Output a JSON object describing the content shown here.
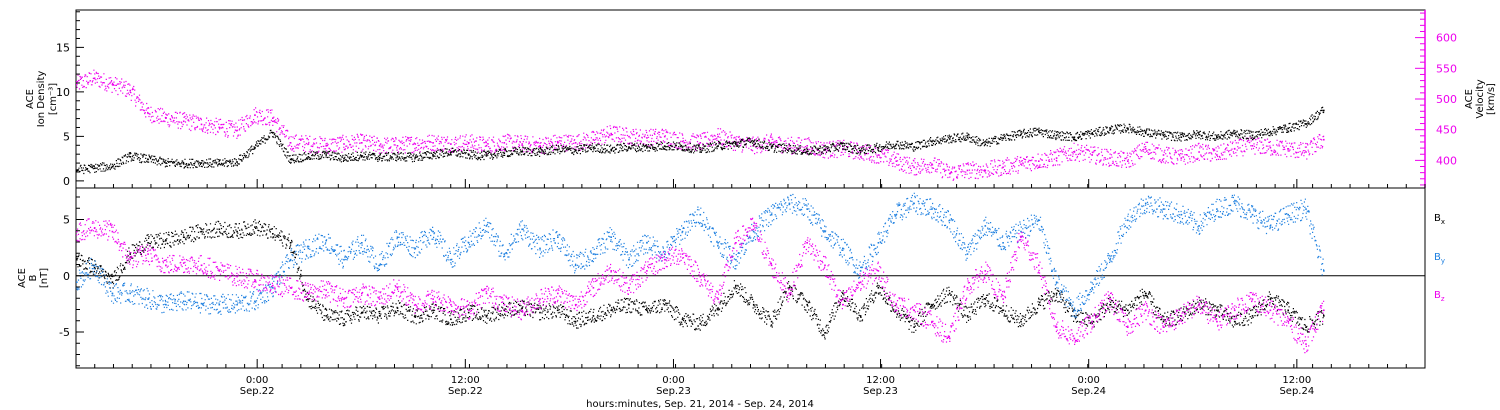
{
  "chart_data": [
    {
      "type": "scatter",
      "panel": "top",
      "ylabel_left": [
        "ACE",
        "Ion Density",
        "[cm⁻³]"
      ],
      "ylabel_right": [
        "ACE",
        "Velocity",
        "[km/s]"
      ],
      "yticks_left": [
        0,
        5,
        10,
        15
      ],
      "ylim_left": [
        -0.8,
        19.2
      ],
      "yticks_right": [
        400,
        450,
        500,
        550,
        600
      ],
      "ylim_right": [
        355,
        645
      ],
      "grid": false,
      "series": [
        {
          "name": "Ion Density",
          "axis": "left",
          "color": "#000000",
          "x": [
            0,
            1,
            2,
            3,
            4,
            5,
            6,
            7,
            8,
            9,
            10,
            11,
            12,
            13,
            14,
            15,
            16,
            17,
            18,
            19,
            20,
            21,
            22,
            23,
            24,
            25,
            26,
            27,
            28,
            29,
            30,
            31,
            32,
            33,
            34,
            35,
            36,
            37,
            38,
            39,
            40,
            41,
            42,
            43,
            44,
            45,
            46,
            47,
            48,
            49,
            50,
            51,
            52,
            53,
            54,
            55,
            56,
            57,
            58,
            59,
            60,
            61,
            62,
            63,
            64,
            65,
            66,
            67,
            68,
            69,
            70
          ],
          "values": [
            1.3,
            1.5,
            1.7,
            2.8,
            2.5,
            2.1,
            2.0,
            2.1,
            2.0,
            2.2,
            3.8,
            5.5,
            2.5,
            2.8,
            3.0,
            2.6,
            2.9,
            2.7,
            2.8,
            2.7,
            3.0,
            3.3,
            3.0,
            2.9,
            3.2,
            3.4,
            3.3,
            3.6,
            3.5,
            3.8,
            3.6,
            3.9,
            3.8,
            4.0,
            3.9,
            3.6,
            4.0,
            4.2,
            4.5,
            3.8,
            3.7,
            3.4,
            3.6,
            4.0,
            3.5,
            3.8,
            4.2,
            3.9,
            4.5,
            4.8,
            5.0,
            4.2,
            4.9,
            5.3,
            5.6,
            5.2,
            5.0,
            5.4,
            5.8,
            6.0,
            5.5,
            5.2,
            5.0,
            5.3,
            5.0,
            5.4,
            5.2,
            5.6,
            6.0,
            6.5,
            8.0
          ]
        },
        {
          "name": "Velocity",
          "axis": "right",
          "color": "#ee00ee",
          "x": [
            0,
            1,
            2,
            3,
            4,
            5,
            6,
            7,
            8,
            9,
            10,
            11,
            12,
            13,
            14,
            15,
            16,
            17,
            18,
            19,
            20,
            21,
            22,
            23,
            24,
            25,
            26,
            27,
            28,
            29,
            30,
            31,
            32,
            33,
            34,
            35,
            36,
            37,
            38,
            39,
            40,
            41,
            42,
            43,
            44,
            45,
            46,
            47,
            48,
            49,
            50,
            51,
            52,
            53,
            54,
            55,
            56,
            57,
            58,
            59,
            60,
            61,
            62,
            63,
            64,
            65,
            66,
            67,
            68,
            69,
            70
          ],
          "values": [
            525,
            535,
            525,
            515,
            478,
            470,
            465,
            460,
            455,
            450,
            475,
            470,
            430,
            428,
            425,
            428,
            430,
            425,
            425,
            428,
            430,
            428,
            430,
            425,
            430,
            428,
            425,
            430,
            430,
            435,
            445,
            440,
            438,
            440,
            432,
            430,
            440,
            430,
            425,
            430,
            425,
            425,
            418,
            420,
            415,
            410,
            400,
            390,
            395,
            380,
            385,
            385,
            390,
            395,
            400,
            405,
            415,
            410,
            405,
            400,
            420,
            410,
            405,
            415,
            410,
            420,
            425,
            422,
            420,
            415,
            435
          ]
        }
      ]
    },
    {
      "type": "scatter",
      "panel": "bottom",
      "ylabel_left": [
        "ACE",
        "B",
        "[nT]"
      ],
      "yticks_left": [
        -5,
        0,
        5
      ],
      "ylim_left": [
        -8.2,
        7.8
      ],
      "zero_line": true,
      "grid": false,
      "legend": [
        "Bx",
        "By",
        "Bz"
      ],
      "legend_position": "right",
      "series": [
        {
          "name": "Bx",
          "color": "#000000",
          "x": [
            0,
            1,
            2,
            3,
            4,
            5,
            6,
            7,
            8,
            9,
            10,
            11,
            12,
            13,
            14,
            15,
            16,
            17,
            18,
            19,
            20,
            21,
            22,
            23,
            24,
            25,
            26,
            27,
            28,
            29,
            30,
            31,
            32,
            33,
            34,
            35,
            36,
            37,
            38,
            39,
            40,
            41,
            42,
            43,
            44,
            45,
            46,
            47,
            48,
            49,
            50,
            51,
            52,
            53,
            54,
            55,
            56,
            57,
            58,
            59,
            60,
            61,
            62,
            63,
            64,
            65,
            66,
            67,
            68,
            69,
            70
          ],
          "values": [
            1.5,
            0.8,
            -0.5,
            2.0,
            3.0,
            3.2,
            3.5,
            4.0,
            4.2,
            4.0,
            4.4,
            3.8,
            3.0,
            -2.0,
            -3.5,
            -3.8,
            -3.2,
            -3.5,
            -2.8,
            -3.6,
            -3.0,
            -3.8,
            -3.2,
            -3.5,
            -3.0,
            -2.8,
            -3.2,
            -3.0,
            -4.0,
            -3.5,
            -3.0,
            -2.5,
            -3.0,
            -2.5,
            -3.8,
            -4.2,
            -2.8,
            -0.8,
            -2.5,
            -4.0,
            -1.0,
            -2.5,
            -5.0,
            -1.5,
            -3.5,
            -1.0,
            -3.0,
            -4.5,
            -2.5,
            -1.5,
            -3.5,
            -2.0,
            -3.0,
            -4.0,
            -2.5,
            -1.5,
            -3.5,
            -4.0,
            -2.5,
            -3.0,
            -1.5,
            -4.0,
            -3.5,
            -2.5,
            -3.0,
            -4.0,
            -3.5,
            -2.0,
            -3.0,
            -4.5,
            -3.5
          ]
        },
        {
          "name": "By",
          "color": "#1f80e0",
          "x": [
            0,
            1,
            2,
            3,
            4,
            5,
            6,
            7,
            8,
            9,
            10,
            11,
            12,
            13,
            14,
            15,
            16,
            17,
            18,
            19,
            20,
            21,
            22,
            23,
            24,
            25,
            26,
            27,
            28,
            29,
            30,
            31,
            32,
            33,
            34,
            35,
            36,
            37,
            38,
            39,
            40,
            41,
            42,
            43,
            44,
            45,
            46,
            47,
            48,
            49,
            50,
            51,
            52,
            53,
            54,
            55,
            56,
            57,
            58,
            59,
            60,
            61,
            62,
            63,
            64,
            65,
            66,
            67,
            68,
            69,
            70
          ],
          "values": [
            -0.5,
            1.0,
            -1.5,
            -1.5,
            -2.0,
            -2.5,
            -2.2,
            -2.4,
            -2.5,
            -2.5,
            -2.2,
            -1.0,
            1.5,
            2.5,
            3.2,
            1.5,
            3.0,
            1.0,
            3.5,
            2.5,
            4.0,
            1.5,
            3.0,
            4.5,
            2.0,
            4.2,
            2.5,
            3.5,
            1.0,
            2.0,
            3.5,
            1.5,
            3.0,
            2.0,
            4.0,
            5.5,
            3.0,
            1.5,
            4.0,
            5.5,
            6.5,
            6.0,
            4.0,
            2.5,
            0.5,
            3.0,
            5.5,
            6.5,
            6.0,
            5.0,
            2.0,
            4.5,
            3.0,
            4.0,
            5.0,
            -0.5,
            -3.0,
            -1.0,
            1.5,
            5.0,
            6.5,
            6.0,
            5.5,
            4.5,
            6.0,
            6.5,
            5.5,
            4.5,
            5.5,
            6.0,
            0.5
          ]
        },
        {
          "name": "Bz",
          "color": "#ee00ee",
          "x": [
            0,
            1,
            2,
            3,
            4,
            5,
            6,
            7,
            8,
            9,
            10,
            11,
            12,
            13,
            14,
            15,
            16,
            17,
            18,
            19,
            20,
            21,
            22,
            23,
            24,
            25,
            26,
            27,
            28,
            29,
            30,
            31,
            32,
            33,
            34,
            35,
            36,
            37,
            38,
            39,
            40,
            41,
            42,
            43,
            44,
            45,
            46,
            47,
            48,
            49,
            50,
            51,
            52,
            53,
            54,
            55,
            56,
            57,
            58,
            59,
            60,
            61,
            62,
            63,
            64,
            65,
            66,
            67,
            68,
            69,
            70
          ],
          "values": [
            4.0,
            4.3,
            4.0,
            1.5,
            2.0,
            1.0,
            1.2,
            1.0,
            0.5,
            0.0,
            -0.3,
            -0.8,
            -1.0,
            -1.5,
            -1.2,
            -2.0,
            -1.5,
            -2.0,
            -1.0,
            -2.5,
            -2.0,
            -2.5,
            -3.0,
            -1.5,
            -2.5,
            -3.0,
            -2.0,
            -1.5,
            -2.5,
            -1.0,
            0.5,
            -1.0,
            0.5,
            1.5,
            2.0,
            0.0,
            -2.0,
            3.0,
            4.5,
            1.0,
            -1.5,
            3.0,
            1.0,
            -2.5,
            -0.5,
            0.5,
            -2.5,
            -3.0,
            -4.0,
            -5.5,
            -1.0,
            0.5,
            -2.0,
            3.5,
            1.0,
            -4.5,
            -5.5,
            -4.0,
            -2.0,
            -4.5,
            -3.0,
            -4.5,
            -3.5,
            -2.5,
            -4.0,
            -3.0,
            -2.0,
            -3.0,
            -4.0,
            -6.0,
            -3.0
          ]
        }
      ]
    },
    {
      "type": "time_axis",
      "ticks": [
        {
          "line1": "0:00",
          "line2": "Sep.22",
          "pos": 0.1343
        },
        {
          "line1": "12:00",
          "line2": "Sep.22",
          "pos": 0.2886
        },
        {
          "line1": "0:00",
          "line2": "Sep.23",
          "pos": 0.4429
        },
        {
          "line1": "12:00",
          "line2": "Sep.23",
          "pos": 0.5964
        },
        {
          "line1": "0:00",
          "line2": "Sep.24",
          "pos": 0.7507
        },
        {
          "line1": "12:00",
          "line2": "Sep.24",
          "pos": 0.905
        }
      ],
      "xlabel": "hours:minutes, Sep. 21, 2014 - Sep. 24, 2014"
    }
  ]
}
